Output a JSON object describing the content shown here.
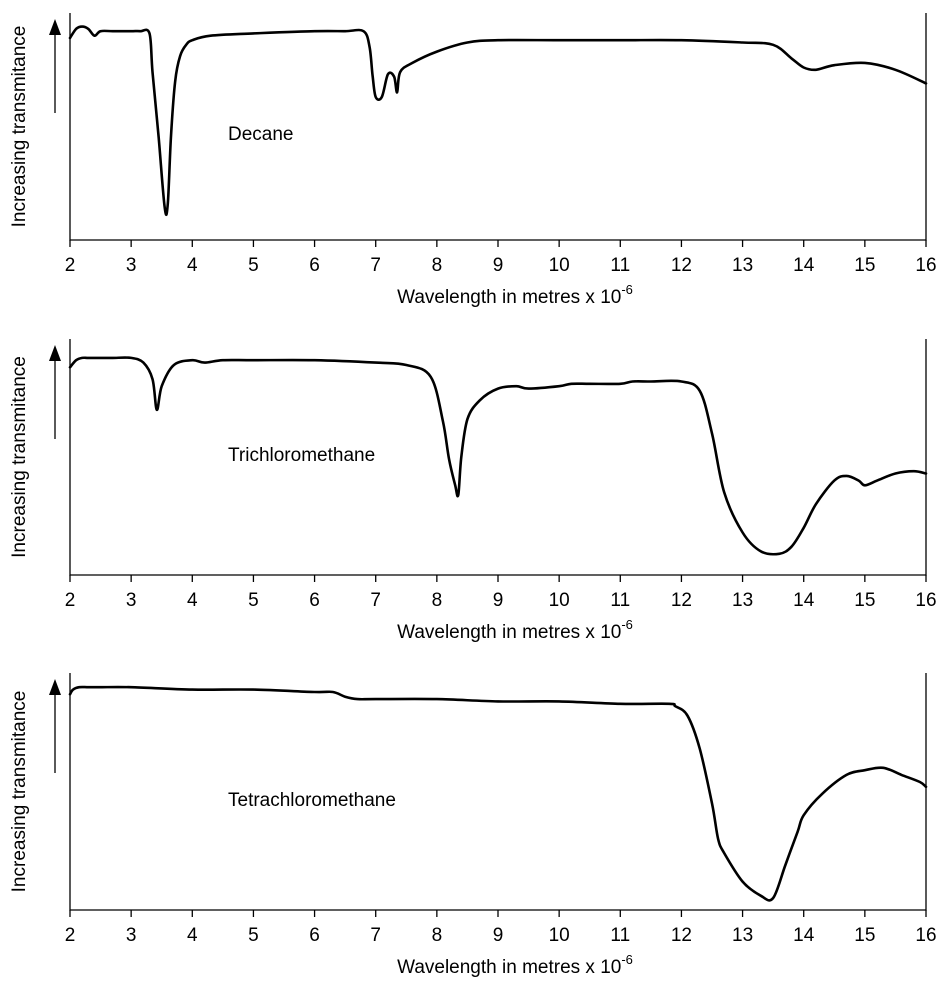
{
  "chart_data": [
    {
      "type": "line",
      "annotation": "Decane",
      "ylabel": "Increasing transmitance",
      "xlabel": "Wavelength in metres x 10",
      "xlabel_exponent": "-6",
      "xlim": [
        2,
        16
      ],
      "ylim": [
        0,
        1
      ],
      "xticks": [
        "2",
        "3",
        "4",
        "5",
        "6",
        "7",
        "8",
        "9",
        "10",
        "11",
        "12",
        "13",
        "14",
        "15",
        "16"
      ],
      "grid": false,
      "series": [
        {
          "x": [
            2.0,
            2.1,
            2.2,
            2.3,
            2.4,
            2.5,
            2.7,
            3.0,
            3.15,
            3.3,
            3.35,
            3.45,
            3.55,
            3.6,
            3.65,
            3.72,
            3.8,
            3.9,
            4.0,
            4.3,
            5.0,
            6.0,
            6.5,
            6.8,
            6.9,
            6.95,
            7.0,
            7.1,
            7.2,
            7.3,
            7.35,
            7.4,
            7.6,
            8.0,
            8.5,
            9.0,
            10.0,
            11.0,
            12.0,
            13.0,
            13.5,
            13.8,
            14.0,
            14.2,
            14.5,
            15.0,
            15.5,
            16.0
          ],
          "y": [
            0.89,
            0.93,
            0.94,
            0.93,
            0.9,
            0.92,
            0.92,
            0.92,
            0.92,
            0.91,
            0.74,
            0.45,
            0.14,
            0.16,
            0.45,
            0.7,
            0.81,
            0.86,
            0.88,
            0.9,
            0.91,
            0.92,
            0.92,
            0.92,
            0.85,
            0.72,
            0.63,
            0.63,
            0.73,
            0.72,
            0.65,
            0.74,
            0.78,
            0.83,
            0.87,
            0.88,
            0.88,
            0.88,
            0.88,
            0.87,
            0.86,
            0.8,
            0.76,
            0.75,
            0.77,
            0.78,
            0.75,
            0.69
          ]
        }
      ]
    },
    {
      "type": "line",
      "annotation": "Trichloromethane",
      "ylabel": "Increasing transmitance",
      "xlabel": "Wavelength in metres x 10",
      "xlabel_exponent": "-6",
      "xlim": [
        2,
        16
      ],
      "ylim": [
        0,
        1
      ],
      "xticks": [
        "2",
        "3",
        "4",
        "5",
        "6",
        "7",
        "8",
        "9",
        "10",
        "11",
        "12",
        "13",
        "14",
        "15",
        "16"
      ],
      "grid": false,
      "series": [
        {
          "x": [
            2.0,
            2.1,
            2.2,
            2.3,
            2.5,
            2.7,
            3.0,
            3.2,
            3.35,
            3.42,
            3.5,
            3.7,
            4.0,
            4.2,
            4.5,
            5.0,
            6.0,
            7.0,
            7.5,
            7.9,
            8.1,
            8.2,
            8.3,
            8.35,
            8.4,
            8.5,
            8.7,
            9.0,
            9.3,
            9.5,
            10.0,
            10.2,
            10.5,
            11.0,
            11.2,
            11.5,
            12.0,
            12.3,
            12.5,
            12.7,
            13.0,
            13.3,
            13.6,
            13.8,
            14.0,
            14.2,
            14.5,
            14.7,
            14.9,
            15.0,
            15.2,
            15.5,
            15.8,
            16.0
          ],
          "y": [
            0.88,
            0.91,
            0.92,
            0.92,
            0.92,
            0.92,
            0.92,
            0.9,
            0.83,
            0.7,
            0.8,
            0.89,
            0.91,
            0.9,
            0.91,
            0.91,
            0.91,
            0.9,
            0.89,
            0.84,
            0.65,
            0.49,
            0.38,
            0.34,
            0.5,
            0.66,
            0.74,
            0.79,
            0.8,
            0.79,
            0.8,
            0.81,
            0.81,
            0.81,
            0.82,
            0.82,
            0.82,
            0.78,
            0.6,
            0.35,
            0.18,
            0.1,
            0.09,
            0.12,
            0.2,
            0.3,
            0.4,
            0.42,
            0.4,
            0.38,
            0.4,
            0.43,
            0.44,
            0.43
          ]
        }
      ]
    },
    {
      "type": "line",
      "annotation": "Tetrachloromethane",
      "ylabel": "Increasing transmitance",
      "xlabel": "Wavelength in metres x 10",
      "xlabel_exponent": "-6",
      "xlim": [
        2,
        16
      ],
      "ylim": [
        0,
        1
      ],
      "xticks": [
        "2",
        "3",
        "4",
        "5",
        "6",
        "7",
        "8",
        "9",
        "10",
        "11",
        "12",
        "13",
        "14",
        "15",
        "16"
      ],
      "grid": false,
      "series": [
        {
          "x": [
            2.0,
            2.05,
            2.15,
            2.3,
            2.5,
            3.0,
            4.0,
            5.0,
            6.0,
            6.3,
            6.5,
            6.7,
            7.0,
            8.0,
            9.0,
            10.0,
            11.0,
            11.8,
            11.9,
            12.1,
            12.3,
            12.5,
            12.6,
            12.7,
            13.0,
            13.3,
            13.5,
            13.7,
            13.9,
            14.0,
            14.3,
            14.7,
            15.0,
            15.3,
            15.6,
            15.9,
            16.0
          ],
          "y": [
            0.91,
            0.93,
            0.94,
            0.94,
            0.94,
            0.94,
            0.93,
            0.93,
            0.92,
            0.92,
            0.9,
            0.89,
            0.89,
            0.89,
            0.88,
            0.88,
            0.87,
            0.87,
            0.86,
            0.82,
            0.68,
            0.45,
            0.3,
            0.24,
            0.12,
            0.06,
            0.05,
            0.19,
            0.33,
            0.4,
            0.49,
            0.57,
            0.59,
            0.6,
            0.57,
            0.54,
            0.52
          ]
        }
      ]
    }
  ]
}
